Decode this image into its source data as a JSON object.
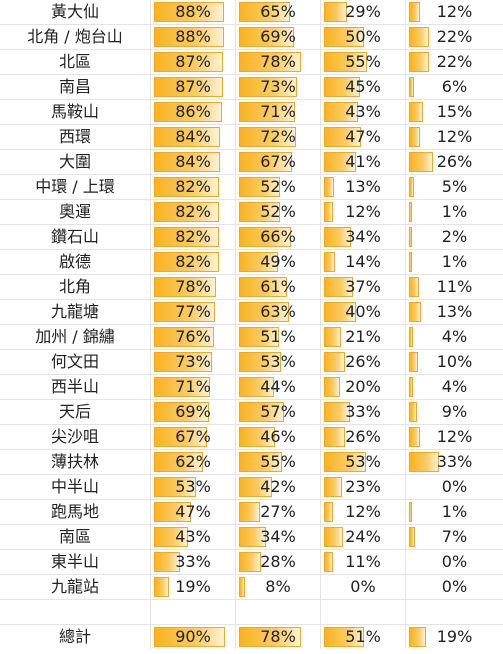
{
  "rows": [
    {
      "name": "黃大仙",
      "values": [
        "88%",
        "65%",
        "29%",
        "12%"
      ]
    },
    {
      "name": "北角 / 炮台山",
      "values": [
        "88%",
        "69%",
        "50%",
        "22%"
      ]
    },
    {
      "name": "北區",
      "values": [
        "87%",
        "78%",
        "55%",
        "22%"
      ]
    },
    {
      "name": "南昌",
      "values": [
        "87%",
        "73%",
        "45%",
        "6%"
      ]
    },
    {
      "name": "馬鞍山",
      "values": [
        "86%",
        "71%",
        "43%",
        "15%"
      ]
    },
    {
      "name": "西環",
      "values": [
        "84%",
        "72%",
        "47%",
        "12%"
      ]
    },
    {
      "name": "大圍",
      "values": [
        "84%",
        "67%",
        "41%",
        "26%"
      ]
    },
    {
      "name": "中環 / 上環",
      "values": [
        "82%",
        "52%",
        "13%",
        "5%"
      ]
    },
    {
      "name": "奧運",
      "values": [
        "82%",
        "52%",
        "12%",
        "1%"
      ]
    },
    {
      "name": "鑽石山",
      "values": [
        "82%",
        "66%",
        "34%",
        "2%"
      ]
    },
    {
      "name": "啟德",
      "values": [
        "82%",
        "49%",
        "14%",
        "1%"
      ]
    },
    {
      "name": "北角",
      "values": [
        "78%",
        "61%",
        "37%",
        "11%"
      ]
    },
    {
      "name": "九龍塘",
      "values": [
        "77%",
        "63%",
        "40%",
        "13%"
      ]
    },
    {
      "name": "加州 / 錦繡",
      "values": [
        "76%",
        "51%",
        "21%",
        "4%"
      ]
    },
    {
      "name": "何文田",
      "values": [
        "73%",
        "53%",
        "26%",
        "10%"
      ]
    },
    {
      "name": "西半山",
      "values": [
        "71%",
        "44%",
        "20%",
        "4%"
      ]
    },
    {
      "name": "天后",
      "values": [
        "69%",
        "57%",
        "33%",
        "9%"
      ]
    },
    {
      "name": "尖沙咀",
      "values": [
        "67%",
        "46%",
        "26%",
        "12%"
      ]
    },
    {
      "name": "薄扶林",
      "values": [
        "62%",
        "55%",
        "53%",
        "33%"
      ]
    },
    {
      "name": "中半山",
      "values": [
        "53%",
        "42%",
        "23%",
        "0%"
      ]
    },
    {
      "name": "跑馬地",
      "values": [
        "47%",
        "27%",
        "12%",
        "1%"
      ]
    },
    {
      "name": "南區",
      "values": [
        "43%",
        "34%",
        "24%",
        "7%"
      ]
    },
    {
      "name": "東半山",
      "values": [
        "33%",
        "28%",
        "11%",
        "0%"
      ]
    },
    {
      "name": "九龍站",
      "values": [
        "19%",
        "8%",
        "0%",
        "0%"
      ]
    }
  ],
  "total": {
    "name": "總計",
    "values": [
      "90%",
      "78%",
      "51%",
      "19%"
    ]
  },
  "colors": {
    "bar_fill": "#f8b321",
    "bar_border": "#f5a623",
    "grid_line": "#e4e4e4"
  }
}
